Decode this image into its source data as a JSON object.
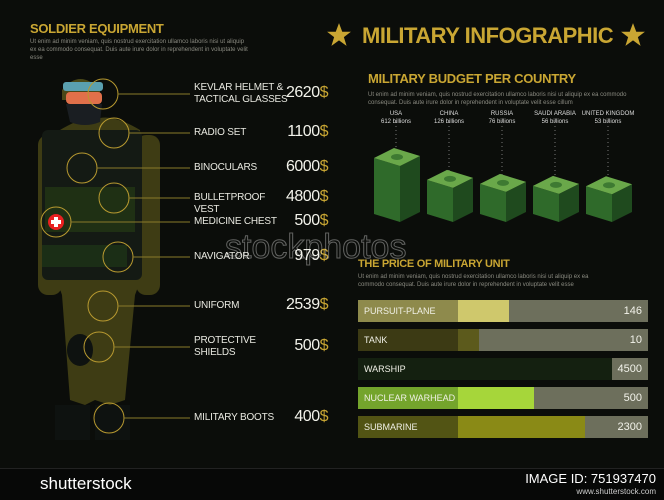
{
  "left": {
    "title": "SOLDIER EQUIPMENT",
    "lorem": "Ut enim ad minim veniam, quis nostrud exercitation ullamco laboris nisi ut aliquip ex ea commodo consequat. Duis aute irure dolor in reprehendent in voluptate velit esse",
    "currency": "$",
    "items": [
      {
        "label": "KEVLAR HELMET & TACTICAL GLASSES",
        "price": "2620"
      },
      {
        "label": "RADIO SET",
        "price": "1100"
      },
      {
        "label": "BINOCULARS",
        "price": "6000"
      },
      {
        "label": "BULLETPROOF VEST",
        "price": "4800"
      },
      {
        "label": "MEDICINE CHEST",
        "price": "500"
      },
      {
        "label": "NAVIGATOR",
        "price": "979"
      },
      {
        "label": "UNIFORM",
        "price": "2539"
      },
      {
        "label": "PROTECTIVE SHIELDS",
        "price": "500"
      },
      {
        "label": "MILITARY BOOTS",
        "price": "400"
      }
    ]
  },
  "header": {
    "title": "MILITARY INFOGRAPHIC",
    "icon": "star-icon"
  },
  "budget": {
    "title": "MILITARY BUDGET PER COUNTRY",
    "lorem": "Ut enim ad minim veniam, quis nostrud exercitation ullamco laboris nisi ut aliquip ex ea commodo consequat. Duis aute irure dolor in reprehendent in voluptate velit esse cillum",
    "countries": [
      {
        "name": "USA",
        "value": "612 billions",
        "amount": 612
      },
      {
        "name": "CHINA",
        "value": "126 billions",
        "amount": 126
      },
      {
        "name": "RUSSIA",
        "value": "76 billions",
        "amount": 76
      },
      {
        "name": "SAUDI ARABIA",
        "value": "56 billions",
        "amount": 56
      },
      {
        "name": "UNITED KINGDOM",
        "value": "53 billions",
        "amount": 53
      }
    ]
  },
  "units": {
    "title": "THE PRICE OF MILITARY UNIT",
    "lorem": "Ut enim ad minim veniam, quis nostrud exercitation ullamco laboris nisi ut aliquip ex ea commodo consequat. Duis aute irure dolor in reprehendent in voluptate velit esse",
    "items": [
      {
        "label": "PURSUIT-PLANE",
        "value": "146",
        "fill": 0.27,
        "color": "#8e8a4c",
        "fillColor": "#cfc86c"
      },
      {
        "label": "TANK",
        "value": "10",
        "fill": 0.11,
        "color": "#3c3a14",
        "fillColor": "#5c5a1c"
      },
      {
        "label": "WARSHIP",
        "value": "4500",
        "fill": 0.81,
        "color": "#142010",
        "fillColor": "#142010"
      },
      {
        "label": "NUCLEAR WARHEAD",
        "value": "500",
        "fill": 0.4,
        "color": "#74a42c",
        "fillColor": "#a6d63a"
      },
      {
        "label": "SUBMARINE",
        "value": "2300",
        "fill": 0.67,
        "color": "#525414",
        "fillColor": "#8a8a16"
      }
    ]
  },
  "watermark": {
    "text": "stockphotos",
    "footer_brand": "shutterstock",
    "footer_id": "IMAGE ID: 751937470",
    "footer_url": "www.shutterstock.com"
  }
}
